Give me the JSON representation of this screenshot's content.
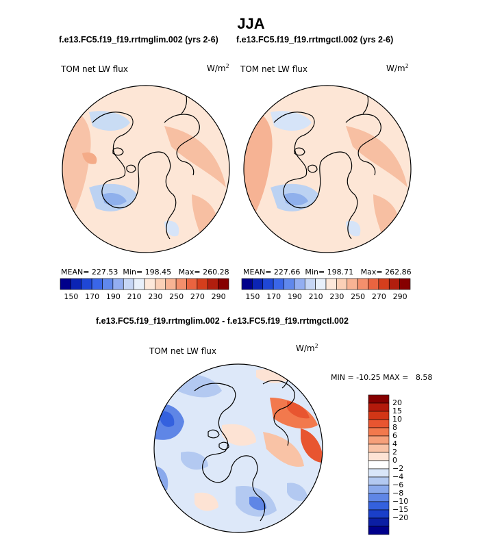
{
  "title": "JJA",
  "panels": [
    {
      "run_label": "f.e13.FC5.f19_f19.rrtmglim.002 (yrs 2-6)",
      "field_label": "TOM net LW flux",
      "units_base": "W/m",
      "units_exp": "2",
      "stats": {
        "mean_label": "MEAN=",
        "mean": "227.53",
        "min_label": "Min=",
        "min": "198.45",
        "max_label": "Max=",
        "max": "260.28"
      }
    },
    {
      "run_label": "f.e13.FC5.f19_f19.rrtmgctl.002 (yrs 2-6)",
      "field_label": "TOM net LW flux",
      "units_base": "W/m",
      "units_exp": "2",
      "stats": {
        "mean_label": "MEAN=",
        "mean": "227.66",
        "min_label": "Min=",
        "min": "198.71",
        "max_label": "Max=",
        "max": "262.86"
      }
    }
  ],
  "abs_colorbar": {
    "colors": [
      "#00008b",
      "#0b24b4",
      "#1f47d6",
      "#3a66e8",
      "#6088ec",
      "#93aef1",
      "#c6d6f5",
      "#e8f0fb",
      "#fde8da",
      "#fbd0b7",
      "#f8b394",
      "#f48f6c",
      "#ea6440",
      "#d53e1c",
      "#b11e0e",
      "#860000"
    ],
    "labels": [
      "150",
      "170",
      "190",
      "210",
      "230",
      "250",
      "270",
      "290"
    ]
  },
  "diff_panel": {
    "run_label": "f.e13.FC5.f19_f19.rrtmglim.002 - f.e13.FC5.f19_f19.rrtmgctl.002",
    "field_label": "TOM net LW flux",
    "units_base": "W/m",
    "units_exp": "2",
    "min_max_text": "MIN = -10.25 MAX =   8.58"
  },
  "diff_colorbar": {
    "colors": [
      "#860000",
      "#b31a0b",
      "#d23616",
      "#e85530",
      "#f2794d",
      "#f6a07a",
      "#f9c3a6",
      "#fde3d4",
      "#ffffff",
      "#d9e6f9",
      "#b3c9f1",
      "#8aa9ec",
      "#5f86e6",
      "#3461de",
      "#1a3fc9",
      "#0b1ea4",
      "#00008b"
    ],
    "labels": [
      "20",
      "15",
      "10",
      "8",
      "6",
      "4",
      "2",
      "0",
      "−2",
      "−4",
      "−6",
      "−8",
      "−10",
      "−15",
      "−20"
    ]
  }
}
